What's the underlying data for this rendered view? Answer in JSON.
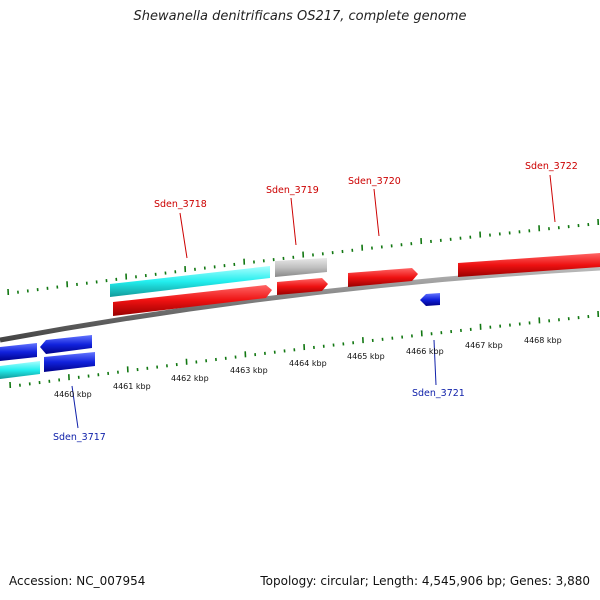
{
  "title": "Shewanella denitrificans OS217, complete genome",
  "footer": {
    "accession": "Accession: NC_007954",
    "summary": "Topology: circular; Length: 4,545,906 bp; Genes: 3,880"
  },
  "colors": {
    "forward_cds": "#ee1111",
    "reverse_cds": "#1122dd",
    "cyan_feature": "#22eeee",
    "gray_feature": "#c0c0c0",
    "tick": "#117711",
    "backbone": "#888888"
  },
  "scale_labels": [
    "4460 kbp",
    "4461 kbp",
    "4462 kbp",
    "4463 kbp",
    "4464 kbp",
    "4465 kbp",
    "4466 kbp",
    "4467 kbp",
    "4468 kbp"
  ],
  "gene_labels": {
    "top": [
      "Sden_3718",
      "Sden_3719",
      "Sden_3720",
      "Sden_3722"
    ],
    "bottom": [
      "Sden_3717",
      "Sden_3721"
    ]
  }
}
